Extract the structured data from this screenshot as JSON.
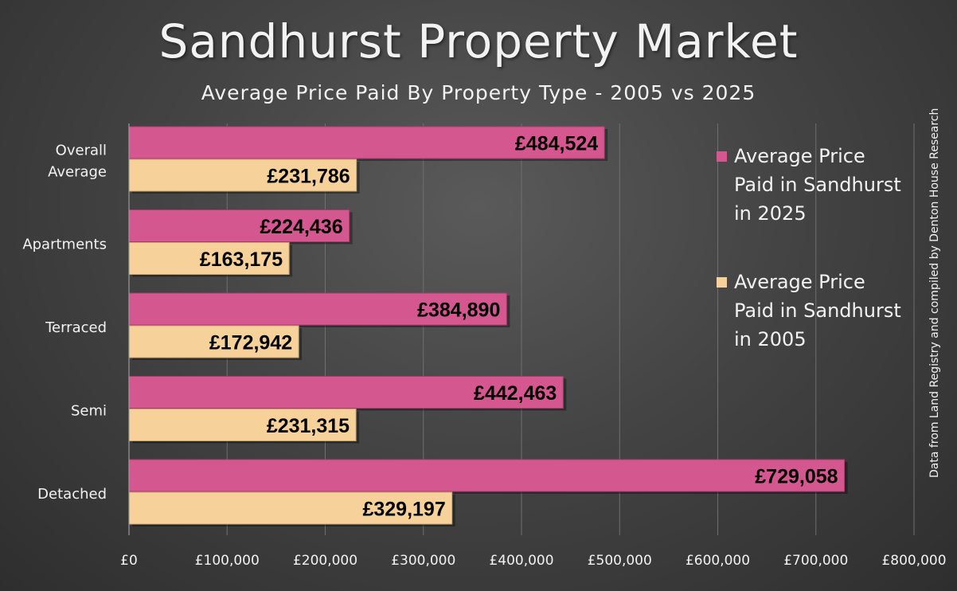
{
  "title": "Sandhurst Property Market",
  "subtitle": "Average Price Paid By Property Type - 2005 vs 2025",
  "source_note": "Data from Land Registry and compiled by Denton House Research",
  "colors": {
    "series_2025": "#d4578f",
    "series_2005": "#f6d19a",
    "background": "#404040",
    "text": "#f2f2f2"
  },
  "chart_data": {
    "type": "bar",
    "orientation": "horizontal",
    "categories": [
      [
        "Overall",
        "Average"
      ],
      [
        "Apartments"
      ],
      [
        "Terraced"
      ],
      [
        "Semi"
      ],
      [
        "Detached"
      ]
    ],
    "series": [
      {
        "name": "Average Price Paid in Sandhurst in 2025",
        "values": [
          484524,
          224436,
          384890,
          442463,
          729058
        ],
        "labels": [
          "£484,524",
          "£224,436",
          "£384,890",
          "£442,463",
          "£729,058"
        ]
      },
      {
        "name": "Average Price Paid in Sandhurst in 2005",
        "values": [
          231786,
          163175,
          172942,
          231315,
          329197
        ],
        "labels": [
          "£231,786",
          "£163,175",
          "£172,942",
          "£231,315",
          "£329,197"
        ]
      }
    ],
    "xlim": [
      0,
      800000
    ],
    "x_ticks": [
      0,
      100000,
      200000,
      300000,
      400000,
      500000,
      600000,
      700000,
      800000
    ],
    "x_tick_labels": [
      "£0",
      "£100,000",
      "£200,000",
      "£300,000",
      "£400,000",
      "£500,000",
      "£600,000",
      "£700,000",
      "£800,000"
    ],
    "grid": "vertical",
    "legend": "right"
  }
}
